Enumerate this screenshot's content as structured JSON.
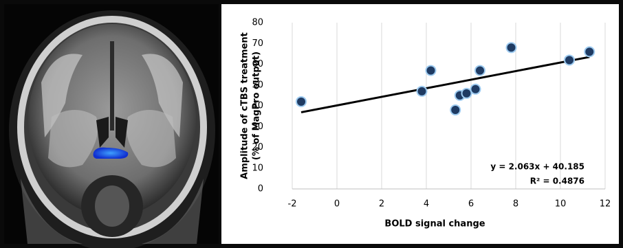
{
  "chart_data": {
    "type": "scatter",
    "xlabel": "BOLD signal change",
    "ylabel": [
      "Amplitude of cTBS treatment",
      "(% of MagPro output)"
    ],
    "x": [
      -1.6,
      3.8,
      4.2,
      5.3,
      5.5,
      5.8,
      6.2,
      6.4,
      7.8,
      10.4,
      11.3
    ],
    "series": [
      {
        "color": "#1f3b63",
        "values": [
          42,
          47,
          57,
          38,
          45,
          46,
          48,
          57,
          68,
          62,
          66
        ]
      }
    ],
    "xlim": [
      -2,
      12
    ],
    "xticks": [
      -2,
      0,
      2,
      4,
      6,
      8,
      10,
      12
    ],
    "ylim": [
      0,
      80
    ],
    "yticks": [
      0,
      10,
      20,
      30,
      40,
      50,
      60,
      70,
      80
    ],
    "grid": true,
    "trendline": {
      "slope": 2.063,
      "intercept": 40.185,
      "color": "#000000"
    },
    "annotations": [
      "y = 2.063x + 40.185",
      "R² = 0.4876"
    ]
  }
}
